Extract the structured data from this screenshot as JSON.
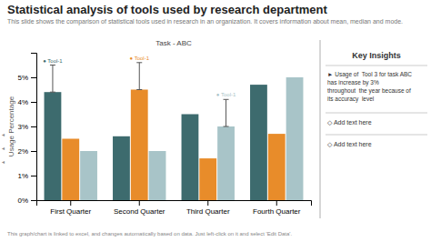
{
  "chart_data": {
    "type": "bar",
    "title": "Statistical analysis of tools used by research department",
    "subtitle": "This slide shows the comparison of statistical tools used in research in an organization. It covers information about mean, median and mode.",
    "ylabel": "Usage Percentage",
    "categories": [
      "First Quarter",
      "Second Quarter",
      "Third Quarter",
      "Fourth Quarter"
    ],
    "series": [
      {
        "color": "#3d6b6e",
        "values": [
          4.4,
          2.6,
          3.5,
          4.7
        ],
        "errors": [
          1.1,
          null,
          null,
          null
        ],
        "error_labels": [
          "● Tool-1",
          null,
          null,
          null
        ]
      },
      {
        "color": "#e88c2a",
        "values": [
          2.5,
          4.5,
          1.7,
          2.7
        ],
        "errors": [
          null,
          1.1,
          null,
          null
        ],
        "error_labels": [
          null,
          "● Tool-1",
          null,
          null
        ]
      },
      {
        "color": "#a8c4c8",
        "values": [
          2.0,
          2.0,
          3.0,
          5.0
        ],
        "errors": [
          null,
          null,
          1.1,
          null
        ],
        "error_labels": [
          null,
          null,
          "● Tool-1",
          null
        ]
      }
    ],
    "ylim": [
      0,
      6
    ],
    "yticks": [
      {
        "value": 0,
        "label": "0%"
      },
      {
        "value": 1,
        "label": "1%"
      },
      {
        "value": 2,
        "label": "2%"
      },
      {
        "value": 3,
        "label": "3%"
      },
      {
        "value": 4,
        "label": "4%"
      },
      {
        "value": 5,
        "label": "5%"
      }
    ],
    "grid": false,
    "annotations": [
      "Task - ABC",
      "Key Insights",
      "► Usage of  Tool 3 for task ABC\nhas increase by 3%\nthroughout  the year because of\nits accuracy  level",
      "◇ Add text here",
      "◇ Add text here",
      "◄",
      "◄",
      "◄",
      "This graph/chart is linked to excel, and changes automatically based on data. Just left-click on it and select 'Edit Data'."
    ]
  }
}
